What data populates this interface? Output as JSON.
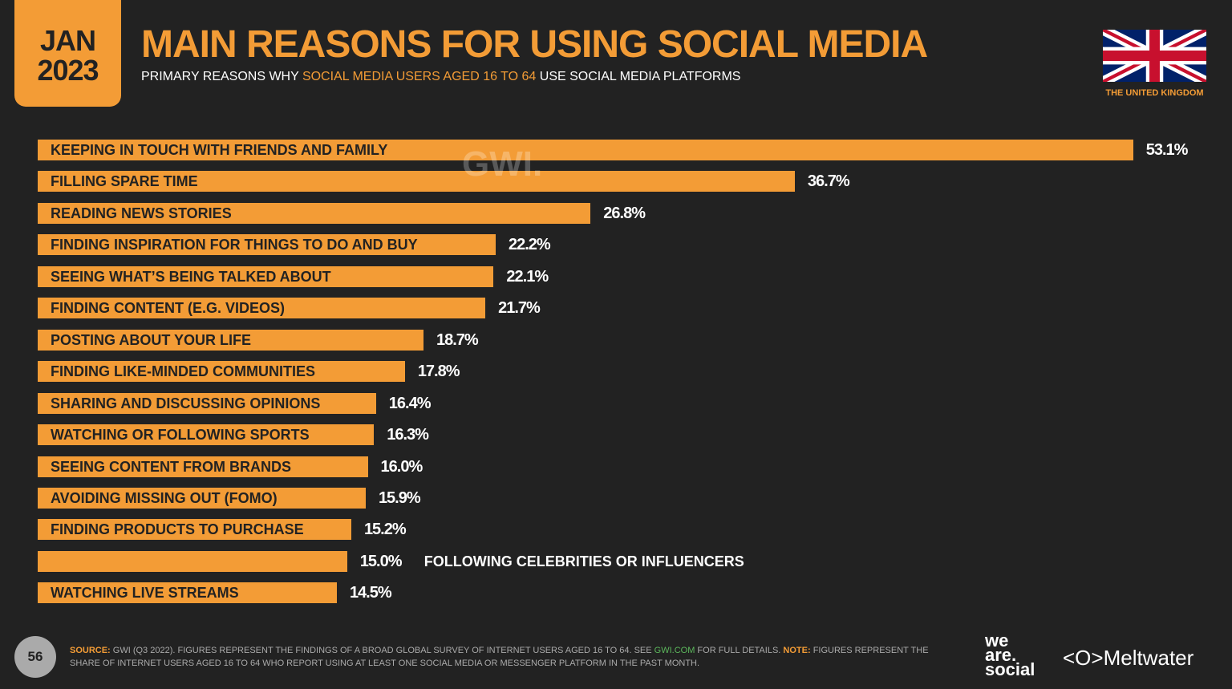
{
  "header": {
    "date_month": "JAN",
    "date_year": "2023",
    "title": "MAIN REASONS FOR USING SOCIAL MEDIA",
    "subtitle_pre": "PRIMARY REASONS WHY ",
    "subtitle_hl": "SOCIAL MEDIA USERS AGED 16 TO 64",
    "subtitle_post": " USE SOCIAL MEDIA PLATFORMS",
    "country": "THE UNITED KINGDOM",
    "watermark": "GWI."
  },
  "colors": {
    "accent": "#f39c36",
    "background": "#222222"
  },
  "chart_data": {
    "type": "bar",
    "orientation": "horizontal",
    "categories": [
      "KEEPING IN TOUCH WITH FRIENDS AND FAMILY",
      "FILLING SPARE TIME",
      "READING NEWS STORIES",
      "FINDING INSPIRATION FOR THINGS TO DO AND BUY",
      "SEEING WHAT’S BEING TALKED ABOUT",
      "FINDING CONTENT (E.G. VIDEOS)",
      "POSTING ABOUT YOUR LIFE",
      "FINDING LIKE-MINDED COMMUNITIES",
      "SHARING AND DISCUSSING OPINIONS",
      "WATCHING OR FOLLOWING SPORTS",
      "SEEING CONTENT FROM BRANDS",
      "AVOIDING MISSING OUT (FOMO)",
      "FINDING PRODUCTS TO PURCHASE",
      "FOLLOWING CELEBRITIES OR INFLUENCERS",
      "WATCHING LIVE STREAMS"
    ],
    "values": [
      53.1,
      36.7,
      26.8,
      22.2,
      22.1,
      21.7,
      18.7,
      17.8,
      16.4,
      16.3,
      16.0,
      15.9,
      15.2,
      15.0,
      14.5
    ],
    "value_labels": [
      "53.1%",
      "36.7%",
      "26.8%",
      "22.2%",
      "22.1%",
      "21.7%",
      "18.7%",
      "17.8%",
      "16.4%",
      "16.3%",
      "16.0%",
      "15.9%",
      "15.2%",
      "15.0%",
      "14.5%"
    ],
    "unit": "%"
  },
  "footer": {
    "page": "56",
    "source_label": "SOURCE:",
    "source_text": " GWI (Q3 2022). FIGURES REPRESENT THE FINDINGS OF A BROAD GLOBAL SURVEY OF INTERNET USERS AGED 16 TO 64. SEE ",
    "source_link": "GWI.COM",
    "source_text2": " FOR FULL DETAILS. ",
    "note_label": "NOTE:",
    "note_text": " FIGURES REPRESENT THE SHARE OF INTERNET USERS AGED 16 TO 64 WHO REPORT USING AT LEAST ONE SOCIAL MEDIA OR MESSENGER PLATFORM IN THE PAST MONTH.",
    "logo1": "we are. social",
    "logo2": "Meltwater"
  }
}
